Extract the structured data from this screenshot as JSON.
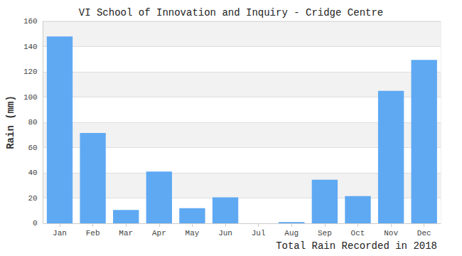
{
  "chart_data": {
    "type": "bar",
    "title": "VI School of Innovation and Inquiry - Cridge Centre",
    "xlabel": "Total Rain Recorded in 2018",
    "ylabel": "Rain (mm)",
    "categories": [
      "Jan",
      "Feb",
      "Mar",
      "Apr",
      "May",
      "Jun",
      "Jul",
      "Aug",
      "Sep",
      "Oct",
      "Nov",
      "Dec"
    ],
    "values": [
      148,
      71.5,
      10.5,
      41,
      12,
      20.5,
      0,
      1,
      34.5,
      21.5,
      105,
      129.5
    ],
    "color": "#5fa9f3",
    "ylim": [
      0,
      160
    ],
    "yticks": [
      0,
      20,
      40,
      60,
      80,
      100,
      120,
      140,
      160
    ],
    "grid": true
  }
}
